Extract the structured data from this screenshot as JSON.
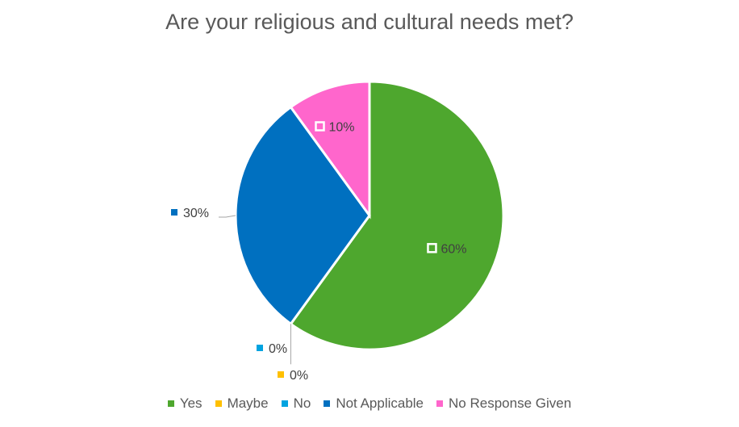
{
  "chart_data": {
    "type": "pie",
    "title": "Are your religious and cultural needs met?",
    "categories": [
      "Yes",
      "Maybe",
      "No",
      "Not Applicable",
      "No Response Given"
    ],
    "values": [
      60,
      0,
      0,
      30,
      10
    ],
    "data_labels": [
      "60%",
      "0%",
      "0%",
      "30%",
      "10%"
    ],
    "colors": [
      "#4ea72e",
      "#ffc000",
      "#00a3e0",
      "#0070c0",
      "#ff66cc"
    ],
    "legend_position": "bottom",
    "start_angle_deg": 0,
    "direction": "clockwise"
  }
}
